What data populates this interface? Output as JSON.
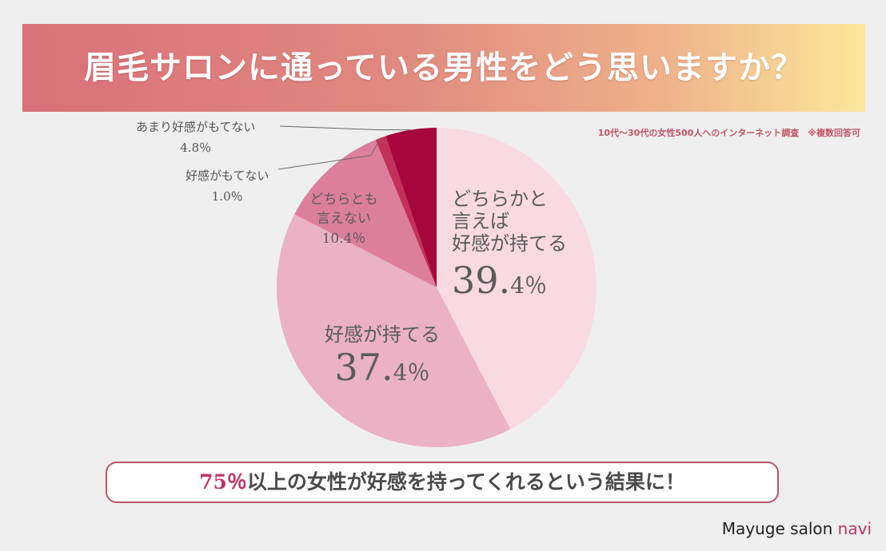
{
  "header": {
    "title": "眉毛サロンに通っている男性をどう思いますか？"
  },
  "note": "10代～30代の女性500人へのインターネット調査　※複数回答可",
  "colors": {
    "banner_start": "#d9707a",
    "banner_end": "#fbe79b",
    "accent": "#c0336a"
  },
  "chart_data": {
    "type": "pie",
    "title": "眉毛サロンに通っている男性をどう思いますか？",
    "slices": [
      {
        "name": "どちらかと言えば好感が持てる",
        "label_lines": [
          "どちらかと",
          "言えば",
          "好感が持てる"
        ],
        "value": 39.4,
        "value_big": "39.",
        "value_small": "4％",
        "color": "#f9d9e2"
      },
      {
        "name": "好感が持てる",
        "label_lines": [
          "好感が持てる"
        ],
        "value": 37.4,
        "value_big": "37.",
        "value_small": "4％",
        "color": "#eab2c4"
      },
      {
        "name": "どちらとも言えない",
        "label_lines": [
          "どちらとも",
          "言えない"
        ],
        "value": 10.4,
        "value_text": "10.4％",
        "color": "#dc7f9d"
      },
      {
        "name": "好感がもてない",
        "label_lines": [
          "好感がもてない"
        ],
        "value": 1.0,
        "value_text": "1.0％",
        "color": "#c3305c"
      },
      {
        "name": "あまり好感がもてない",
        "label_lines": [
          "あまり好感がもてない"
        ],
        "value": 4.8,
        "value_text": "4.8％",
        "color": "#a6063b"
      }
    ]
  },
  "callouts": {
    "amari": {
      "label": "あまり好感がもてない",
      "value": "4.8％"
    },
    "motenai": {
      "label": "好感がもてない",
      "value": "1.0％"
    }
  },
  "conclusion": {
    "highlight": "75％",
    "rest": "以上の女性が好感を持ってくれるという結果に！"
  },
  "brand": {
    "name_main": "Mayuge salon ",
    "name_accent": "navi"
  }
}
